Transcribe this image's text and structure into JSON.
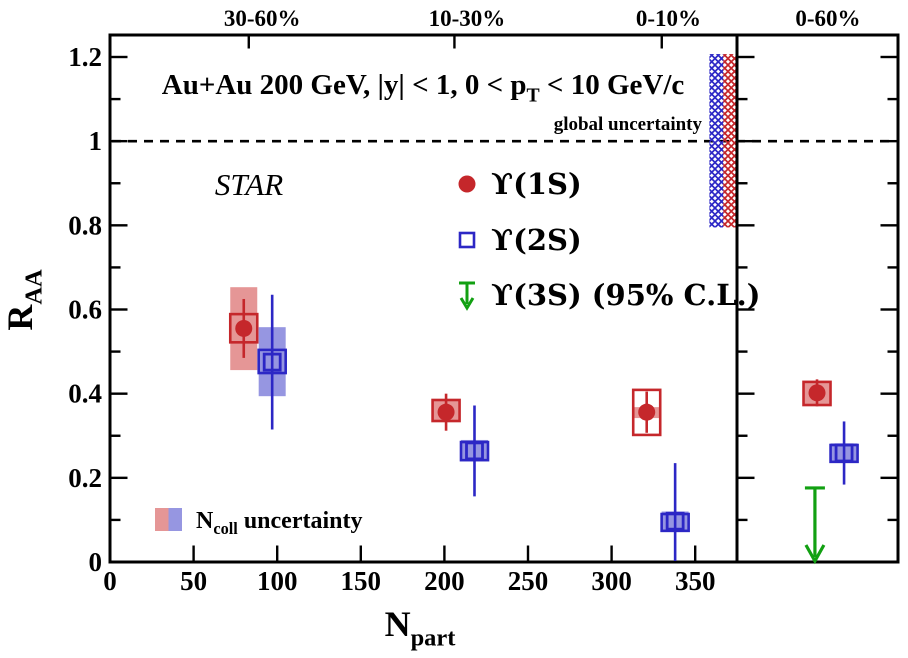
{
  "chart_data": {
    "type": "scatter",
    "title_parts": [
      [
        "t",
        "Au+Au 200 GeV, |y| < 1, 0 < p"
      ],
      [
        "sub",
        "T"
      ],
      [
        "t",
        " < 10 GeV/c"
      ]
    ],
    "experiment_label": "STAR",
    "global_uncertainty_label": "global uncertainty",
    "xlabel_parts": [
      [
        "t",
        "N"
      ],
      [
        "sub",
        "part"
      ]
    ],
    "ylabel_parts": [
      [
        "t",
        "R"
      ],
      [
        "sub",
        "AA"
      ]
    ],
    "xlim": [
      0,
      375
    ],
    "ylim": [
      0,
      1.252
    ],
    "x_ticks": [
      0,
      50,
      100,
      150,
      200,
      250,
      300,
      350
    ],
    "x_tick_labels": [
      "0",
      "50",
      "100",
      "150",
      "200",
      "250",
      "300",
      "350"
    ],
    "y_major_ticks": [
      0,
      0.2,
      0.4,
      0.6,
      0.8,
      1,
      1.2
    ],
    "y_major_labels": [
      "0",
      "0.2",
      "0.4",
      "0.6",
      "0.8",
      "1",
      "1.2"
    ],
    "y_minor_ticks": [
      0.1,
      0.3,
      0.5,
      0.7,
      0.9,
      1.1
    ],
    "dashed_line_y": 1,
    "grid": false,
    "top_axis": {
      "bin_ticks_npart": [
        83,
        206,
        330
      ],
      "labels": [
        {
          "text": "30-60%",
          "npart": 91
        },
        {
          "text": "10-30%",
          "npart": 213.5
        },
        {
          "text": "0-10%",
          "npart": 334
        }
      ]
    },
    "right_panel": {
      "top_label": "0-60%",
      "top_label_frac": 0.565
    },
    "global_uncertainty_band": {
      "y_range": [
        0.795,
        1.207
      ],
      "npart_range_blue": [
        358.5,
        366.8
      ],
      "npart_range_red": [
        366.8,
        374.2
      ]
    },
    "colors": {
      "red": "#c5272b",
      "blue": "#2c27c5",
      "pink_band": "#e59696",
      "blue_band": "#9696e1",
      "green": "#12a012",
      "black": "#000000"
    },
    "series": [
      {
        "id": "upsilon-1s",
        "label": "ϒ(1S)",
        "marker": "filled-circle",
        "color": "#c5272b",
        "band_color": "#e59696",
        "points": [
          {
            "panel": "left",
            "centrality": "30-60%",
            "npart": 80,
            "raa": 0.555,
            "stat": 0.07,
            "syst": [
              0.522,
              0.589
            ],
            "ncoll_band": [
              0.456,
              0.653
            ]
          },
          {
            "panel": "left",
            "centrality": "10-30%",
            "npart": 201,
            "raa": 0.356,
            "stat": 0.044,
            "syst": [
              0.335,
              0.385
            ],
            "ncoll_band": [
              0.333,
              0.387
            ]
          },
          {
            "panel": "left",
            "centrality": "0-10%",
            "npart": 321,
            "raa": 0.356,
            "stat": 0.049,
            "syst": [
              0.302,
              0.409
            ],
            "ncoll_band": [
              0.342,
              0.368
            ]
          },
          {
            "panel": "right",
            "centrality": "0-60%",
            "x_frac": 0.497,
            "raa": 0.402,
            "stat": 0.032,
            "syst": [
              0.373,
              0.428
            ],
            "ncoll_band": [
              0.373,
              0.428
            ]
          }
        ]
      },
      {
        "id": "upsilon-2s",
        "label": "ϒ(2S)",
        "marker": "open-square",
        "color": "#2c27c5",
        "band_color": "#9696e1",
        "points": [
          {
            "panel": "left",
            "centrality": "30-60%",
            "npart": 97,
            "raa": 0.475,
            "stat": 0.16,
            "syst": [
              0.449,
              0.504
            ],
            "ncoll_band": [
              0.394,
              0.558
            ]
          },
          {
            "panel": "left",
            "centrality": "10-30%",
            "npart": 218,
            "raa": 0.264,
            "stat": 0.108,
            "syst": [
              0.242,
              0.285
            ],
            "ncoll_band": [
              0.24,
              0.29
            ]
          },
          {
            "panel": "left",
            "centrality": "0-10%",
            "npart": 338,
            "raa": 0.097,
            "stat_up": 0.138,
            "stat_down": 0.097,
            "syst": [
              0.074,
              0.114
            ],
            "ncoll_band": [
              0.072,
              0.12
            ]
          },
          {
            "panel": "right",
            "centrality": "0-60%",
            "x_frac": 0.665,
            "raa": 0.259,
            "stat": 0.075,
            "syst": [
              0.238,
              0.278
            ],
            "ncoll_band": [
              0.236,
              0.282
            ]
          }
        ]
      },
      {
        "id": "upsilon-3s",
        "label": "ϒ(3S) (95% C.L.)",
        "marker": "down-arrow",
        "color": "#12a012",
        "points": [
          {
            "panel": "right",
            "centrality": "0-60%",
            "x_frac": 0.484,
            "upper_limit": 0.176
          }
        ]
      }
    ],
    "legend_position": "upper-middle",
    "ncoll_legend_parts": [
      [
        "t",
        "N"
      ],
      [
        "sub",
        "coll"
      ],
      [
        "t",
        " uncertainty"
      ]
    ]
  }
}
